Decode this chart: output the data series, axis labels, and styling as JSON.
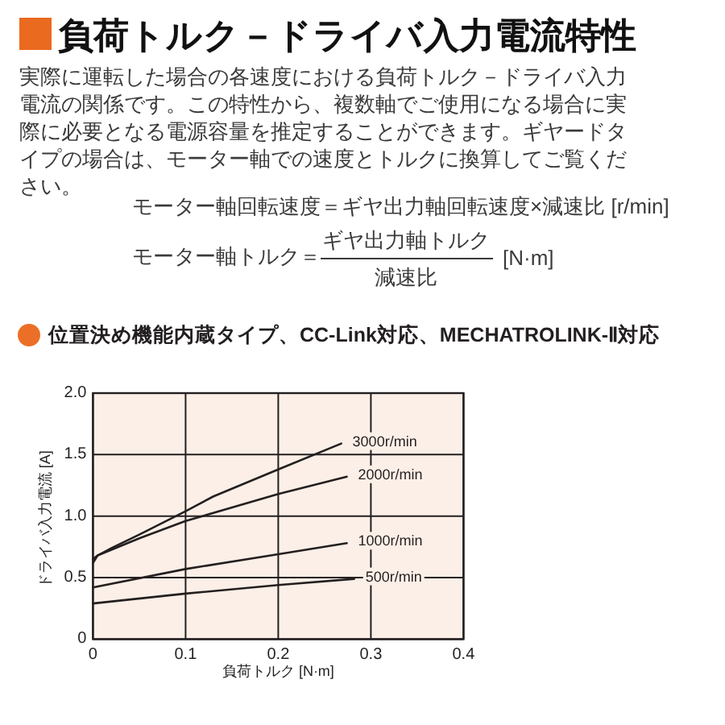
{
  "chart_data": {
    "type": "line",
    "title": "負荷トルク－ドライバ入力電流特性",
    "subtitle": "位置決め機能内蔵タイプ、CC-Link対応、MECHATROLINK-Ⅱ対応",
    "annotations": [
      "実際に運転した場合の各速度における負荷トルク－ドライバ入力電流の関係です。この特性から、複数軸でご使用になる場合に実際に必要となる電源容量を推定することができます。ギヤードタイプの場合は、モーター軸での速度とトルクに換算してご覧ください。",
      "モーター軸回転速度＝ギヤ出力軸回転速度×減速比 [r/min]",
      "モーター軸トルク＝",
      "ギヤ出力軸トルク",
      "減速比",
      "[N·m]"
    ],
    "xlabel": "負荷トルク [N·m]",
    "ylabel": "ドライバ入力電流 [A]",
    "xlim": [
      0,
      0.4
    ],
    "xticks": [
      0,
      0.1,
      0.2,
      0.3,
      0.4
    ],
    "ylim": [
      0,
      2
    ],
    "yticks": [
      0,
      {
        "value": 0.5,
        "label": "0.5"
      },
      {
        "value": 1,
        "label": "1.0"
      },
      {
        "value": 1.5,
        "label": "1.5"
      },
      {
        "value": 2,
        "label": "2.0"
      }
    ],
    "grid": true,
    "legend": false,
    "marker": "none",
    "line_style": "solid",
    "series": [
      {
        "name": "3000r/min",
        "color": "#231f20",
        "x": [
          0,
          0.005,
          0.02,
          0.05,
          0.1,
          0.13,
          0.2,
          0.268
        ],
        "values": [
          0.62,
          0.68,
          0.74,
          0.85,
          1.04,
          1.16,
          1.38,
          1.59
        ]
      },
      {
        "name": "2000r/min",
        "color": "#231f20",
        "x": [
          0,
          0.005,
          0.05,
          0.1,
          0.2,
          0.274
        ],
        "values": [
          0.65,
          0.68,
          0.82,
          0.96,
          1.18,
          1.32
        ]
      },
      {
        "name": "1000r/min",
        "color": "#231f20",
        "x": [
          0,
          0.1,
          0.2,
          0.274
        ],
        "values": [
          0.42,
          0.57,
          0.69,
          0.78
        ]
      },
      {
        "name": "500r/min",
        "color": "#231f20",
        "x": [
          0,
          0.1,
          0.2,
          0.282
        ],
        "values": [
          0.29,
          0.37,
          0.44,
          0.49
        ]
      }
    ]
  }
}
